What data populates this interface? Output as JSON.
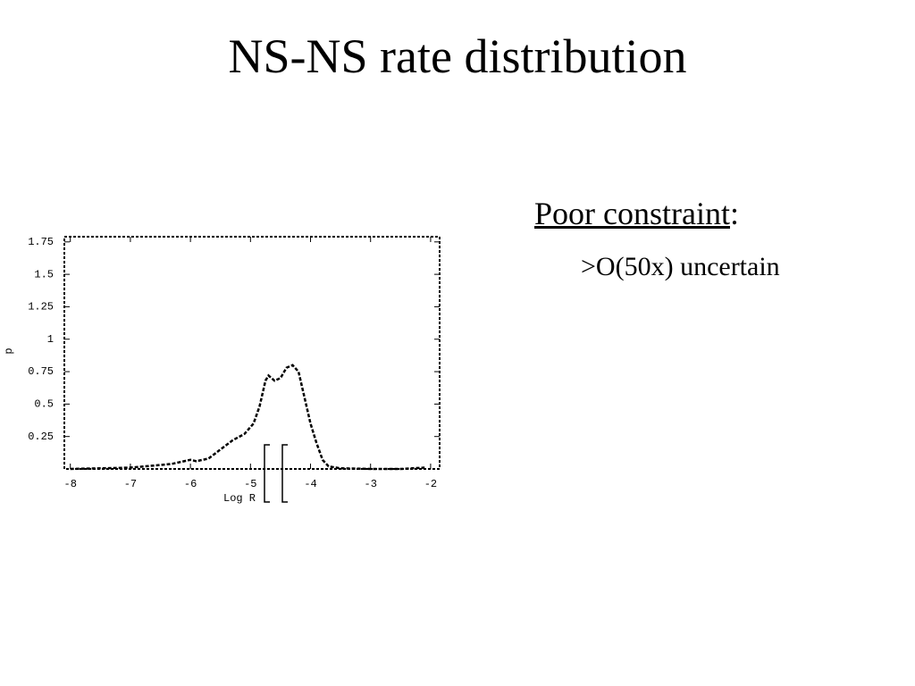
{
  "slide": {
    "title": "NS-NS rate distribution",
    "point": "Poor constraint",
    "point_suffix": ":",
    "sub": ">O(50x) uncertain"
  },
  "chart_data": {
    "type": "line",
    "xlabel": "Log R",
    "ylabel": "p",
    "color": "#000000",
    "x": [
      -8,
      -7.5,
      -7,
      -6.5,
      -6.3,
      -6.0,
      -5.9,
      -5.7,
      -5.5,
      -5.3,
      -5.1,
      -4.95,
      -4.85,
      -4.75,
      -4.7,
      -4.6,
      -4.5,
      -4.4,
      -4.3,
      -4.2,
      -4.1,
      -4.0,
      -3.9,
      -3.8,
      -3.7,
      -3.5,
      -3,
      -2.5,
      -2.1
    ],
    "values": [
      0,
      0.005,
      0.01,
      0.03,
      0.04,
      0.07,
      0.06,
      0.08,
      0.15,
      0.22,
      0.27,
      0.35,
      0.48,
      0.68,
      0.72,
      0.68,
      0.7,
      0.78,
      0.8,
      0.75,
      0.55,
      0.35,
      0.2,
      0.07,
      0.02,
      0.005,
      0,
      0,
      0.01
    ],
    "xlim": [
      -8.1,
      -1.85
    ],
    "ylim": [
      0,
      1.79
    ],
    "xticks": [
      -8,
      -7,
      -6,
      -5,
      -4,
      -3,
      -2
    ],
    "yticks": [
      0.25,
      0.5,
      0.75,
      1,
      1.25,
      1.5,
      1.75
    ]
  }
}
